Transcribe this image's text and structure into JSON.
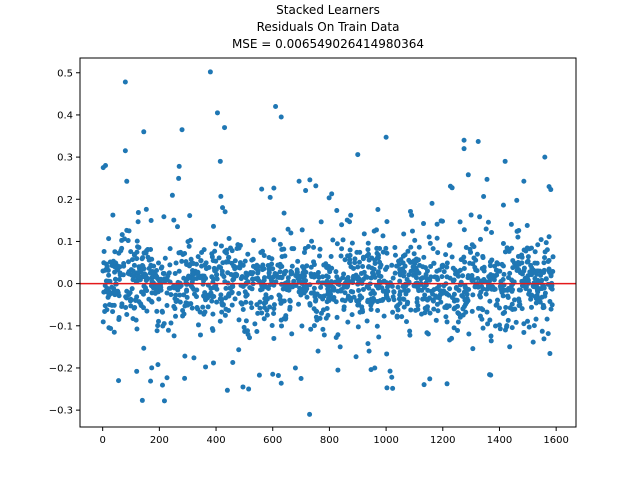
{
  "chart_data": {
    "type": "scatter",
    "title_lines": [
      "Stacked Learners",
      "Residuals On Train Data",
      "MSE = 0.006549026414980364"
    ],
    "xlabel": "",
    "ylabel": "",
    "xlim": [
      -80,
      1670
    ],
    "ylim": [
      -0.34,
      0.535
    ],
    "xticks": [
      0,
      200,
      400,
      600,
      800,
      1000,
      1200,
      1400,
      1600
    ],
    "yticks": [
      -0.3,
      -0.2,
      -0.1,
      0.0,
      0.1,
      0.2,
      0.3,
      0.4,
      0.5
    ],
    "ytick_labels": [
      "−0.3",
      "−0.2",
      "−0.1",
      "0.0",
      "0.1",
      "0.2",
      "0.3",
      "0.4",
      "0.5"
    ],
    "reference_line": {
      "y": 0.0,
      "color": "#e31a1c"
    },
    "point_color": "#1f77b4",
    "n_points": 1590,
    "highlighted_points": [
      {
        "x": 2,
        "y": 0.275
      },
      {
        "x": 10,
        "y": 0.28
      },
      {
        "x": 80,
        "y": 0.478
      },
      {
        "x": 80,
        "y": 0.315
      },
      {
        "x": 145,
        "y": 0.36
      },
      {
        "x": 140,
        "y": -0.277
      },
      {
        "x": 120,
        "y": -0.208
      },
      {
        "x": 195,
        "y": -0.192
      },
      {
        "x": 218,
        "y": -0.278
      },
      {
        "x": 270,
        "y": 0.278
      },
      {
        "x": 280,
        "y": 0.365
      },
      {
        "x": 290,
        "y": -0.172
      },
      {
        "x": 380,
        "y": 0.502
      },
      {
        "x": 405,
        "y": 0.405
      },
      {
        "x": 430,
        "y": 0.37
      },
      {
        "x": 415,
        "y": 0.29
      },
      {
        "x": 440,
        "y": -0.253
      },
      {
        "x": 495,
        "y": -0.245
      },
      {
        "x": 515,
        "y": -0.25
      },
      {
        "x": 610,
        "y": 0.42
      },
      {
        "x": 630,
        "y": 0.395
      },
      {
        "x": 600,
        "y": -0.215
      },
      {
        "x": 620,
        "y": -0.218
      },
      {
        "x": 680,
        "y": -0.2
      },
      {
        "x": 700,
        "y": -0.225
      },
      {
        "x": 730,
        "y": -0.31
      },
      {
        "x": 1000,
        "y": 0.347
      },
      {
        "x": 1020,
        "y": -0.222
      },
      {
        "x": 1275,
        "y": 0.34
      },
      {
        "x": 1275,
        "y": 0.32
      },
      {
        "x": 1325,
        "y": 0.337
      },
      {
        "x": 1560,
        "y": 0.3
      },
      {
        "x": 900,
        "y": 0.306
      },
      {
        "x": 1575,
        "y": 0.23
      },
      {
        "x": 1420,
        "y": 0.29
      },
      {
        "x": 960,
        "y": -0.2
      },
      {
        "x": 940,
        "y": -0.16
      },
      {
        "x": 830,
        "y": -0.205
      },
      {
        "x": 760,
        "y": -0.16
      },
      {
        "x": 1290,
        "y": 0.258
      }
    ]
  }
}
